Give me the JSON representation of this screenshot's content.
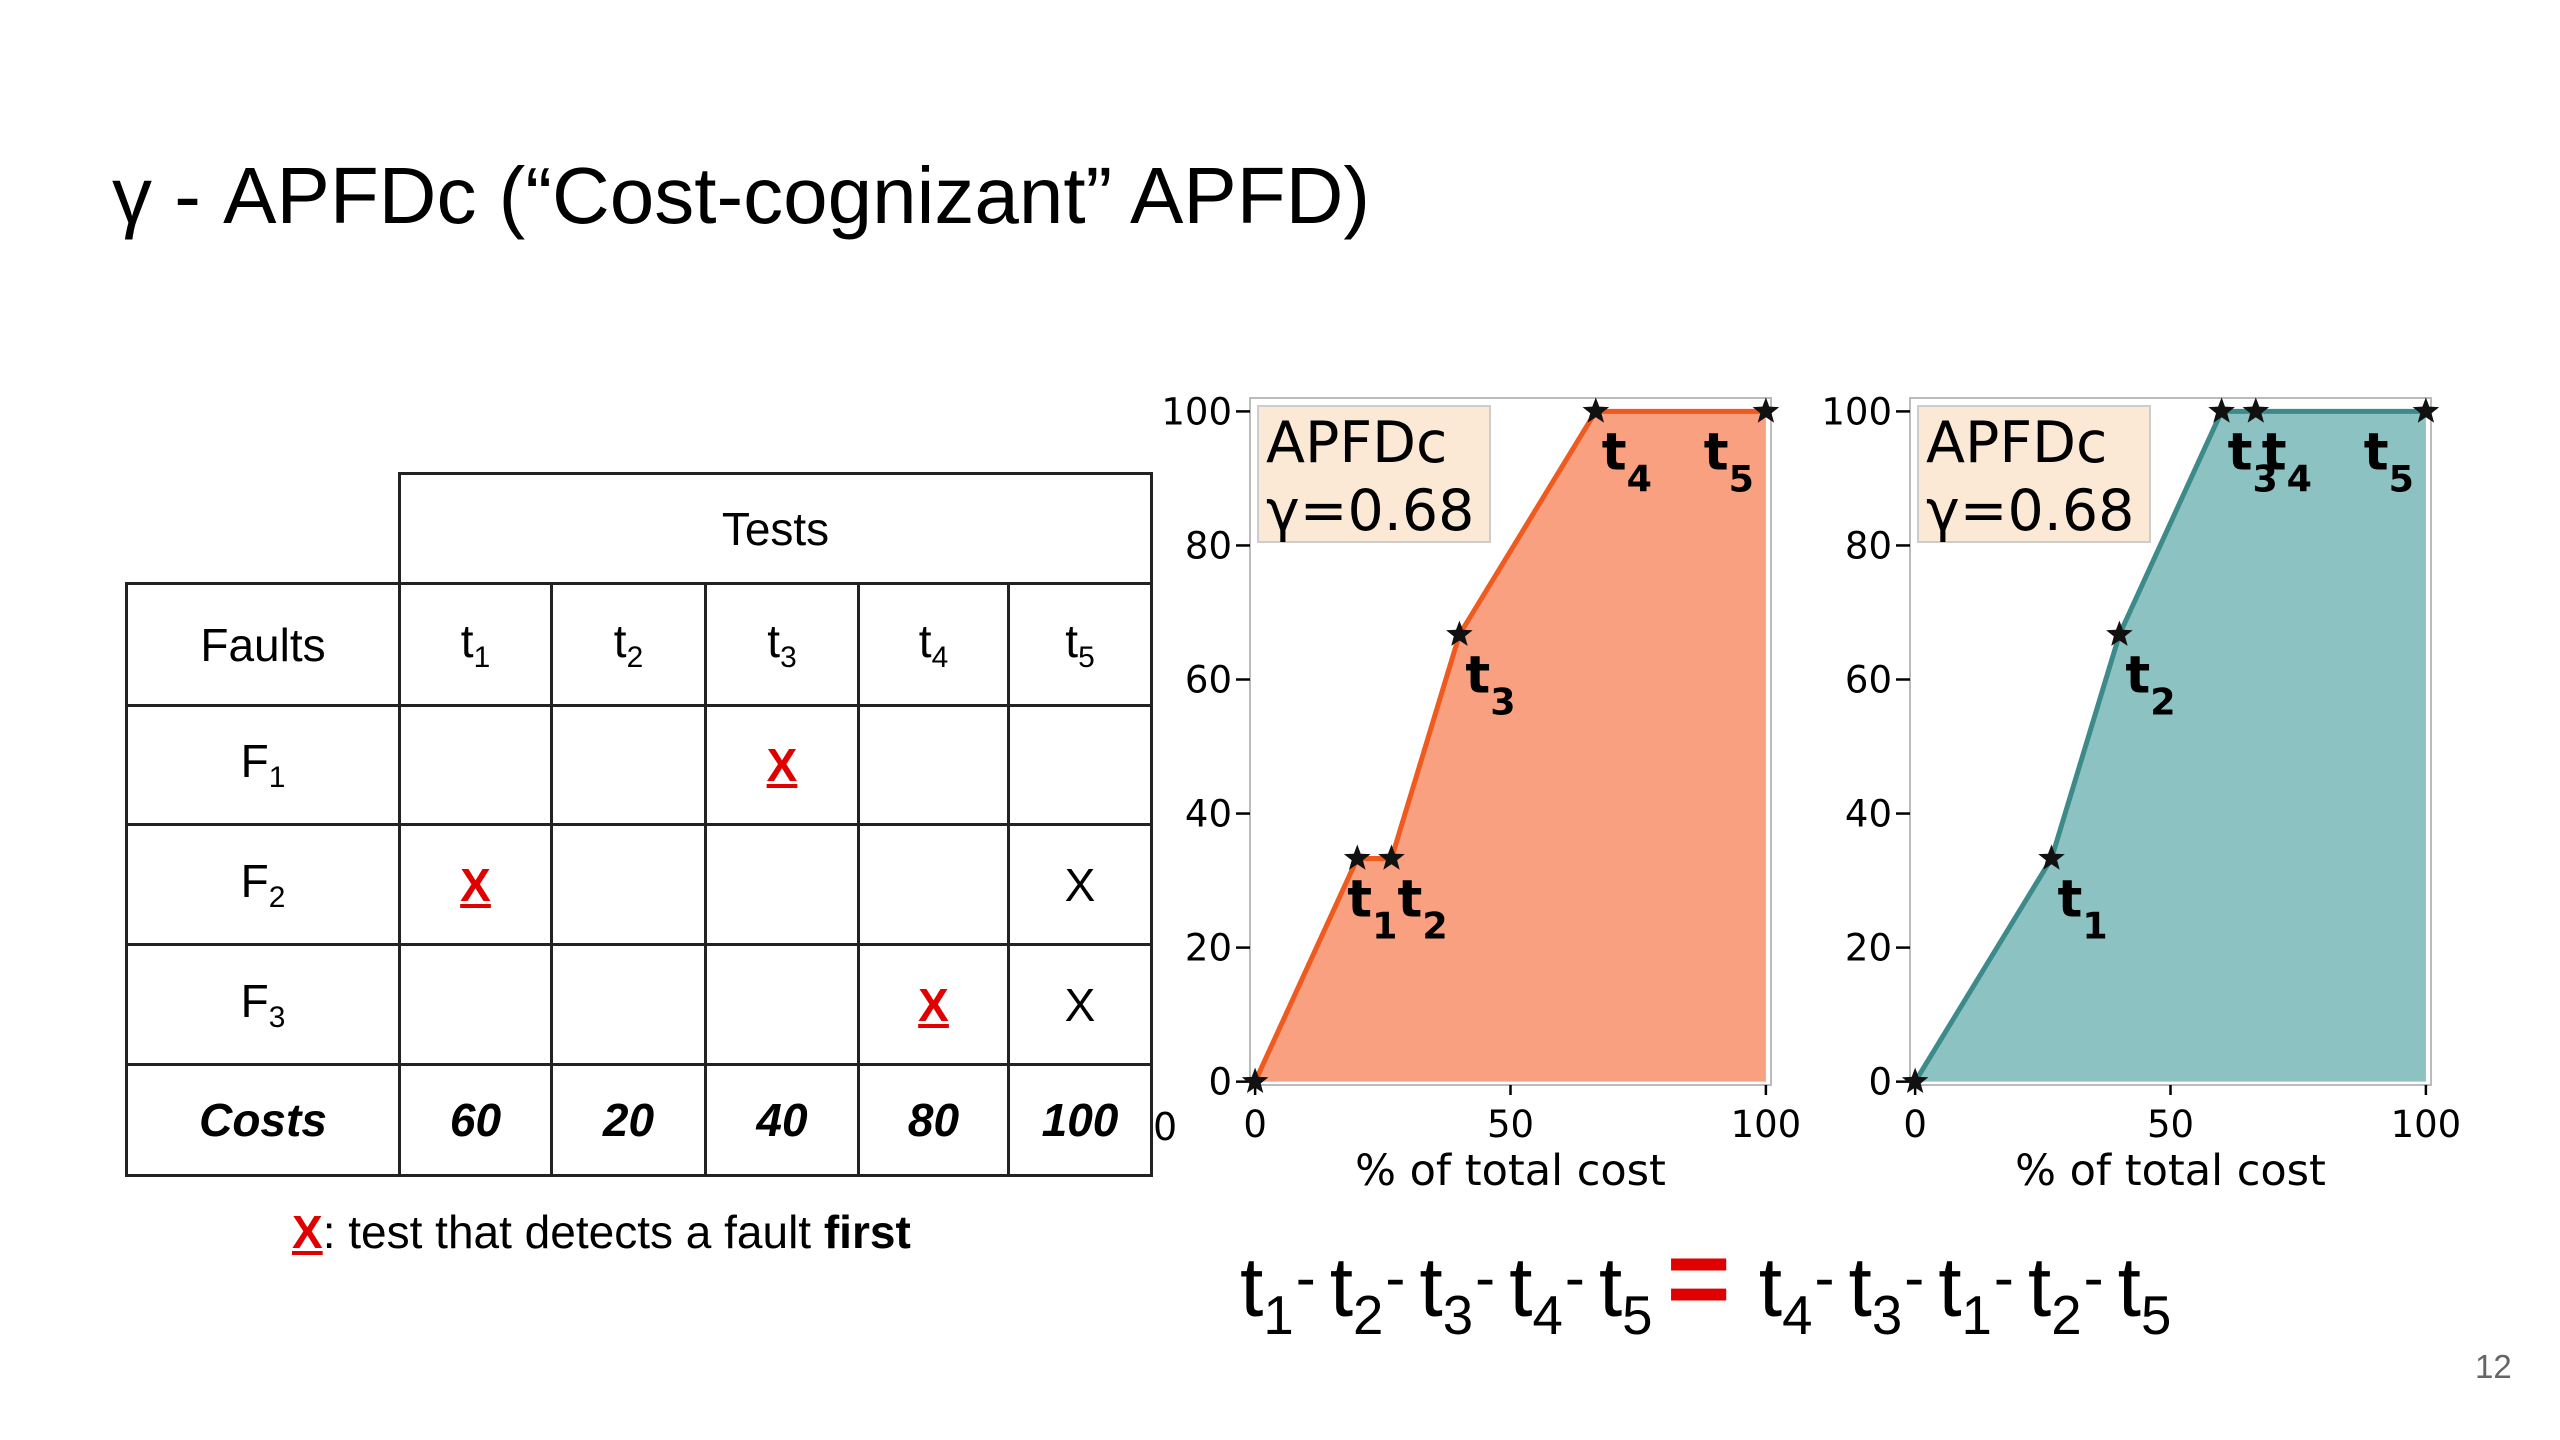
{
  "title": "γ - APFDc (“Cost-cognizant” APFD)",
  "table": {
    "group_header": "Tests",
    "columns": [
      "Faults",
      "t1",
      "t2",
      "t3",
      "t4",
      "t5"
    ],
    "rows": [
      [
        "F1",
        null,
        null,
        {
          "text": "X",
          "first": true
        },
        null,
        null
      ],
      [
        "F2",
        {
          "text": "X",
          "first": true
        },
        null,
        null,
        null,
        {
          "text": "X",
          "first": false
        }
      ],
      [
        "F3",
        null,
        null,
        null,
        {
          "text": "X",
          "first": true
        },
        {
          "text": "X",
          "first": false
        }
      ]
    ],
    "footer": [
      "Costs",
      60,
      20,
      40,
      80,
      100
    ]
  },
  "note": {
    "mark": "X",
    "text": ": test that detects a fault ",
    "emphasis": "first"
  },
  "stray_label": "0",
  "chart_data": [
    {
      "type": "area",
      "x": [
        0,
        20,
        26.7,
        40,
        66.7,
        100
      ],
      "values": [
        0,
        33.3,
        33.3,
        66.7,
        100,
        100
      ],
      "point_labels": [
        null,
        "t1",
        "t2",
        "t3",
        "t4",
        "t5"
      ],
      "color": "#f05a1e",
      "fill": "#f9a080",
      "xlim": [
        -1,
        101
      ],
      "ylim": [
        -0.5,
        102
      ],
      "xticks": [
        0,
        50,
        100
      ],
      "yticks": [
        0,
        20,
        40,
        60,
        80,
        100
      ],
      "xlabel": "% of total cost",
      "annotation": [
        "APFDc",
        "γ=0.68"
      ]
    },
    {
      "type": "area",
      "x": [
        0,
        26.7,
        40,
        60,
        66.7,
        100
      ],
      "values": [
        0,
        33.3,
        66.7,
        100,
        100,
        100
      ],
      "point_labels": [
        null,
        "t1",
        "t2",
        "t3",
        "t4",
        "t5"
      ],
      "color": "#3d8a8a",
      "fill": "#8cc3c2",
      "xlim": [
        -1,
        101
      ],
      "ylim": [
        -0.5,
        102
      ],
      "xticks": [
        0,
        50,
        100
      ],
      "yticks": [
        0,
        20,
        40,
        60,
        80,
        100
      ],
      "xlabel": "% of total cost",
      "annotation": [
        "APFDc",
        "γ=0.68"
      ]
    }
  ],
  "equation": {
    "left": [
      "t1",
      "t2",
      "t3",
      "t4",
      "t5"
    ],
    "equals": "=",
    "right": [
      "t4",
      "t3",
      "t1",
      "t2",
      "t5"
    ],
    "separator": "-"
  },
  "page_number": "12"
}
